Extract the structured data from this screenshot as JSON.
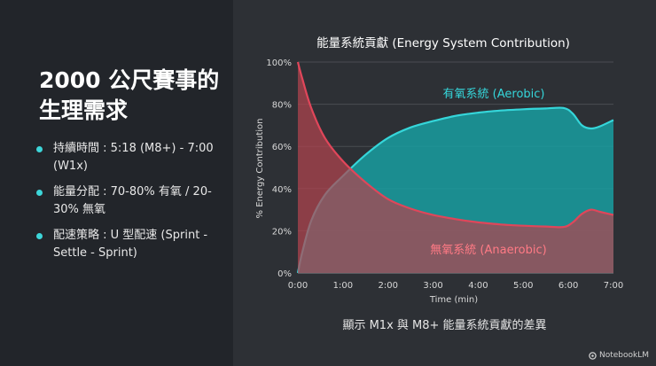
{
  "slide": {
    "title": "2000 公尺賽事的生理需求",
    "bullets": [
      "持續時間 : 5:18 (M8+) - 7:00 (W1x)",
      "能量分配 : 70-80% 有氧 / 20-30% 無氧",
      "配速策略 : U 型配速 (Sprint - Settle - Sprint)"
    ],
    "caption": "顯示 M1x 與 M8+ 能量系統貢獻的差異",
    "brand": "NotebookLM"
  },
  "colors": {
    "accent": "#3dd6d9",
    "aerobic_line": "#35d6da",
    "aerobic_fill": "#199ea0",
    "anaerobic_line": "#e0465a",
    "anaerobic_fill": "#b2444f"
  },
  "chart_data": {
    "type": "area",
    "title": "能量系統貢獻 (Energy System Contribution)",
    "xlabel": "Time (min)",
    "ylabel": "% Energy Contribution",
    "x_ticks": [
      "0:00",
      "1:00",
      "2:00",
      "3:00",
      "4:00",
      "5:00",
      "6:00",
      "7:00"
    ],
    "y_ticks": [
      "0%",
      "20%",
      "40%",
      "60%",
      "80%",
      "100%"
    ],
    "xlim": [
      0,
      7
    ],
    "ylim": [
      0,
      100
    ],
    "grid": true,
    "series": [
      {
        "name": "有氧系統 (Aerobic)",
        "x": [
          0,
          0.1,
          0.3,
          0.6,
          1,
          1.5,
          2,
          2.5,
          3,
          3.5,
          4,
          4.5,
          5,
          5.5,
          5.9,
          6.1,
          6.3,
          6.5,
          6.7,
          7
        ],
        "y": [
          0,
          10,
          25,
          37,
          46,
          56,
          64,
          69,
          72,
          74.5,
          76,
          77,
          77.6,
          78,
          78.2,
          75.5,
          70,
          68.5,
          69.5,
          72.5
        ]
      },
      {
        "name": "無氧系統 (Anaerobic)",
        "x": [
          0,
          0.1,
          0.3,
          0.6,
          1,
          1.5,
          2,
          2.5,
          3,
          3.5,
          4,
          4.5,
          5,
          5.5,
          5.9,
          6.1,
          6.3,
          6.5,
          6.7,
          7
        ],
        "y": [
          100,
          92,
          78,
          64,
          53,
          43,
          35,
          30.5,
          27.5,
          25.5,
          24,
          23,
          22.4,
          22,
          21.8,
          24,
          28,
          30,
          29,
          27.5
        ]
      }
    ]
  }
}
